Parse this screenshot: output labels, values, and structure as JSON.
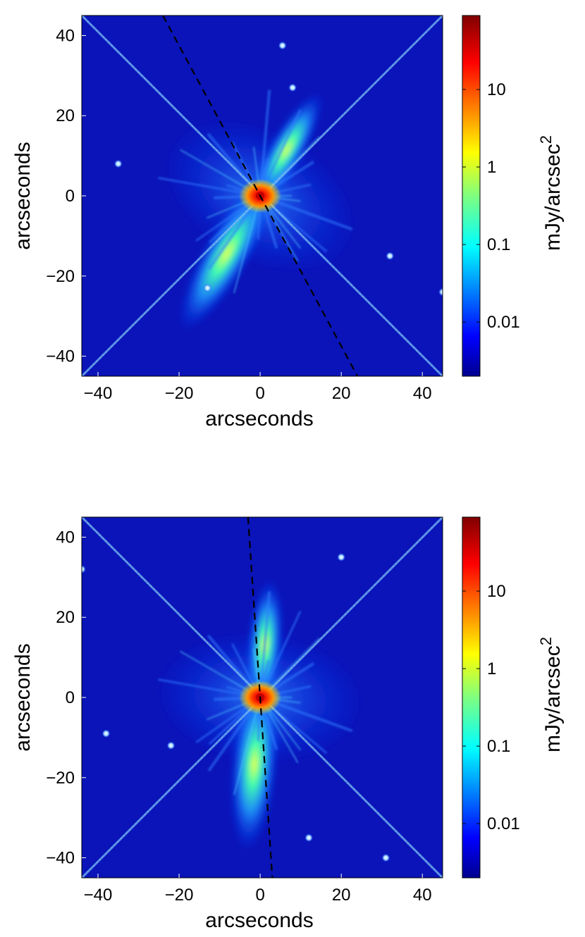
{
  "chart_data": [
    {
      "type": "heatmap",
      "xlabel": "arcseconds",
      "ylabel": "arcseconds",
      "xlim": [
        -44,
        45
      ],
      "ylim": [
        -45,
        45
      ],
      "x_ticks": [
        -40,
        -20,
        0,
        20,
        40
      ],
      "y_ticks": [
        -40,
        -20,
        0,
        20,
        40
      ],
      "x_tick_labels": [
        "−40",
        "−20",
        "0",
        "20",
        "40"
      ],
      "y_tick_labels": [
        "−40",
        "−20",
        "0",
        "20",
        "40"
      ],
      "colorbar": {
        "label": "mJy/arcsec",
        "label_superscript": "2",
        "scale": "log",
        "range": [
          0.002,
          90
        ],
        "ticks": [
          0.01,
          0.1,
          1,
          10
        ],
        "tick_labels": [
          "0.01",
          "0.1",
          "1",
          "10"
        ],
        "colormap": "jet"
      },
      "dashed_line": {
        "points": [
          [
            -24,
            45
          ],
          [
            24,
            -45
          ]
        ],
        "color": "#000000"
      },
      "diffraction_spikes": [
        [
          [
            -44,
            45
          ],
          [
            45,
            -45
          ]
        ],
        [
          [
            -44,
            -45
          ],
          [
            45,
            45
          ]
        ]
      ],
      "nebula_axis_deg": 120,
      "point_sources": [
        [
          5.5,
          37.5
        ],
        [
          45,
          -24
        ],
        [
          -13,
          -23
        ],
        [
          -35,
          8
        ],
        [
          8,
          27
        ],
        [
          32,
          -15
        ]
      ]
    },
    {
      "type": "heatmap",
      "xlabel": "arcseconds",
      "ylabel": "arcseconds",
      "xlim": [
        -44,
        45
      ],
      "ylim": [
        -45,
        45
      ],
      "x_ticks": [
        -40,
        -20,
        0,
        20,
        40
      ],
      "y_ticks": [
        -40,
        -20,
        0,
        20,
        40
      ],
      "x_tick_labels": [
        "−40",
        "−20",
        "0",
        "20",
        "40"
      ],
      "y_tick_labels": [
        "−40",
        "−20",
        "0",
        "20",
        "40"
      ],
      "colorbar": {
        "label": "mJy/arcsec",
        "label_superscript": "2",
        "scale": "log",
        "range": [
          0.002,
          90
        ],
        "ticks": [
          0.01,
          0.1,
          1,
          10
        ],
        "tick_labels": [
          "0.01",
          "0.1",
          "1",
          "10"
        ],
        "colormap": "jet"
      },
      "dashed_line": {
        "points": [
          [
            -3,
            45
          ],
          [
            3,
            -45
          ]
        ],
        "color": "#000000"
      },
      "diffraction_spikes": [
        [
          [
            -44,
            45
          ],
          [
            45,
            -45
          ]
        ],
        [
          [
            -44,
            -45
          ],
          [
            45,
            45
          ]
        ]
      ],
      "nebula_axis_deg": 95,
      "point_sources": [
        [
          20,
          35
        ],
        [
          31,
          -40
        ],
        [
          -22,
          -12
        ],
        [
          -38,
          -9
        ],
        [
          12,
          -35
        ],
        [
          -44,
          32
        ]
      ]
    }
  ]
}
